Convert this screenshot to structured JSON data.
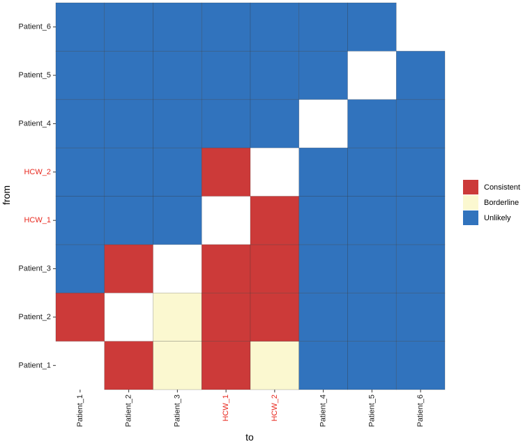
{
  "chart_data": {
    "type": "heatmap",
    "xlabel": "to",
    "ylabel": "from",
    "x_categories": [
      "Patient_1",
      "Patient_2",
      "Patient_3",
      "HCW_1",
      "HCW_2",
      "Patient_4",
      "Patient_5",
      "Patient_6"
    ],
    "y_categories": [
      "Patient_1",
      "Patient_2",
      "Patient_3",
      "HCW_1",
      "HCW_2",
      "Patient_4",
      "Patient_5",
      "Patient_6"
    ],
    "highlighted_labels": [
      "HCW_1",
      "HCW_2"
    ],
    "highlight_color": "#e8281e",
    "tick_label_color": "#1a1a1a",
    "legend": {
      "placement": "right",
      "entries": [
        {
          "label": "Consistent",
          "color": "#cc3a39"
        },
        {
          "label": "Borderline",
          "color": "#fbf8d0"
        },
        {
          "label": "Unlikely",
          "color": "#3173bd"
        }
      ]
    },
    "cells": [
      {
        "from": "Patient_1",
        "to": "Patient_2",
        "value": "Consistent"
      },
      {
        "from": "Patient_1",
        "to": "Patient_3",
        "value": "Borderline"
      },
      {
        "from": "Patient_1",
        "to": "HCW_1",
        "value": "Consistent"
      },
      {
        "from": "Patient_1",
        "to": "HCW_2",
        "value": "Borderline"
      },
      {
        "from": "Patient_1",
        "to": "Patient_4",
        "value": "Unlikely"
      },
      {
        "from": "Patient_1",
        "to": "Patient_5",
        "value": "Unlikely"
      },
      {
        "from": "Patient_1",
        "to": "Patient_6",
        "value": "Unlikely"
      },
      {
        "from": "Patient_2",
        "to": "Patient_1",
        "value": "Consistent"
      },
      {
        "from": "Patient_2",
        "to": "Patient_3",
        "value": "Borderline"
      },
      {
        "from": "Patient_2",
        "to": "HCW_1",
        "value": "Consistent"
      },
      {
        "from": "Patient_2",
        "to": "HCW_2",
        "value": "Consistent"
      },
      {
        "from": "Patient_2",
        "to": "Patient_4",
        "value": "Unlikely"
      },
      {
        "from": "Patient_2",
        "to": "Patient_5",
        "value": "Unlikely"
      },
      {
        "from": "Patient_2",
        "to": "Patient_6",
        "value": "Unlikely"
      },
      {
        "from": "Patient_3",
        "to": "Patient_1",
        "value": "Unlikely"
      },
      {
        "from": "Patient_3",
        "to": "Patient_2",
        "value": "Consistent"
      },
      {
        "from": "Patient_3",
        "to": "HCW_1",
        "value": "Consistent"
      },
      {
        "from": "Patient_3",
        "to": "HCW_2",
        "value": "Consistent"
      },
      {
        "from": "Patient_3",
        "to": "Patient_4",
        "value": "Unlikely"
      },
      {
        "from": "Patient_3",
        "to": "Patient_5",
        "value": "Unlikely"
      },
      {
        "from": "Patient_3",
        "to": "Patient_6",
        "value": "Unlikely"
      },
      {
        "from": "HCW_1",
        "to": "Patient_1",
        "value": "Unlikely"
      },
      {
        "from": "HCW_1",
        "to": "Patient_2",
        "value": "Unlikely"
      },
      {
        "from": "HCW_1",
        "to": "Patient_3",
        "value": "Unlikely"
      },
      {
        "from": "HCW_1",
        "to": "HCW_2",
        "value": "Consistent"
      },
      {
        "from": "HCW_1",
        "to": "Patient_4",
        "value": "Unlikely"
      },
      {
        "from": "HCW_1",
        "to": "Patient_5",
        "value": "Unlikely"
      },
      {
        "from": "HCW_1",
        "to": "Patient_6",
        "value": "Unlikely"
      },
      {
        "from": "HCW_2",
        "to": "Patient_1",
        "value": "Unlikely"
      },
      {
        "from": "HCW_2",
        "to": "Patient_2",
        "value": "Unlikely"
      },
      {
        "from": "HCW_2",
        "to": "Patient_3",
        "value": "Unlikely"
      },
      {
        "from": "HCW_2",
        "to": "HCW_1",
        "value": "Consistent"
      },
      {
        "from": "HCW_2",
        "to": "Patient_4",
        "value": "Unlikely"
      },
      {
        "from": "HCW_2",
        "to": "Patient_5",
        "value": "Unlikely"
      },
      {
        "from": "HCW_2",
        "to": "Patient_6",
        "value": "Unlikely"
      },
      {
        "from": "Patient_4",
        "to": "Patient_1",
        "value": "Unlikely"
      },
      {
        "from": "Patient_4",
        "to": "Patient_2",
        "value": "Unlikely"
      },
      {
        "from": "Patient_4",
        "to": "Patient_3",
        "value": "Unlikely"
      },
      {
        "from": "Patient_4",
        "to": "HCW_1",
        "value": "Unlikely"
      },
      {
        "from": "Patient_4",
        "to": "HCW_2",
        "value": "Unlikely"
      },
      {
        "from": "Patient_4",
        "to": "Patient_5",
        "value": "Unlikely"
      },
      {
        "from": "Patient_4",
        "to": "Patient_6",
        "value": "Unlikely"
      },
      {
        "from": "Patient_5",
        "to": "Patient_1",
        "value": "Unlikely"
      },
      {
        "from": "Patient_5",
        "to": "Patient_2",
        "value": "Unlikely"
      },
      {
        "from": "Patient_5",
        "to": "Patient_3",
        "value": "Unlikely"
      },
      {
        "from": "Patient_5",
        "to": "HCW_1",
        "value": "Unlikely"
      },
      {
        "from": "Patient_5",
        "to": "HCW_2",
        "value": "Unlikely"
      },
      {
        "from": "Patient_5",
        "to": "Patient_4",
        "value": "Unlikely"
      },
      {
        "from": "Patient_5",
        "to": "Patient_6",
        "value": "Unlikely"
      },
      {
        "from": "Patient_6",
        "to": "Patient_1",
        "value": "Unlikely"
      },
      {
        "from": "Patient_6",
        "to": "Patient_2",
        "value": "Unlikely"
      },
      {
        "from": "Patient_6",
        "to": "Patient_3",
        "value": "Unlikely"
      },
      {
        "from": "Patient_6",
        "to": "HCW_1",
        "value": "Unlikely"
      },
      {
        "from": "Patient_6",
        "to": "HCW_2",
        "value": "Unlikely"
      },
      {
        "from": "Patient_6",
        "to": "Patient_4",
        "value": "Unlikely"
      },
      {
        "from": "Patient_6",
        "to": "Patient_5",
        "value": "Unlikely"
      }
    ]
  }
}
